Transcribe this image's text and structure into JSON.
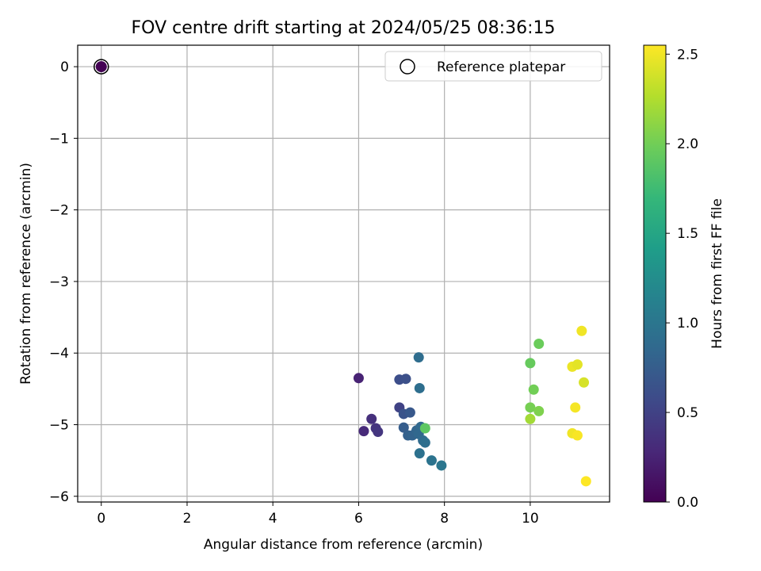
{
  "chart_data": {
    "type": "scatter",
    "title": "FOV centre drift starting at 2024/05/25 08:36:15",
    "xlabel": "Angular distance from reference (arcmin)",
    "ylabel": "Rotation from reference (arcmin)",
    "xlim": [
      -0.55,
      11.85
    ],
    "ylim": [
      -6.08,
      0.3
    ],
    "xticks": [
      0,
      2,
      4,
      6,
      8,
      10
    ],
    "yticks": [
      0,
      -1,
      -2,
      -3,
      -4,
      -5,
      -6
    ],
    "grid": true,
    "legend": {
      "location": "top-right",
      "entries": [
        "Reference platepar"
      ]
    },
    "colorbar": {
      "label": "Hours from first FF file",
      "range": [
        0.0,
        2.55
      ],
      "ticks": [
        "0.0",
        "0.5",
        "1.0",
        "1.5",
        "2.0",
        "2.5"
      ],
      "colormap": "viridis"
    },
    "reference_point": {
      "x": 0.0,
      "y": 0.0,
      "hours": 0.0
    },
    "points": [
      {
        "x": 6.0,
        "y": -4.35,
        "hours": 0.25
      },
      {
        "x": 6.12,
        "y": -5.09,
        "hours": 0.3
      },
      {
        "x": 6.3,
        "y": -4.92,
        "hours": 0.35
      },
      {
        "x": 6.4,
        "y": -5.05,
        "hours": 0.38
      },
      {
        "x": 6.45,
        "y": -5.1,
        "hours": 0.4
      },
      {
        "x": 6.95,
        "y": -4.76,
        "hours": 0.5
      },
      {
        "x": 6.95,
        "y": -4.37,
        "hours": 0.6
      },
      {
        "x": 7.1,
        "y": -4.36,
        "hours": 0.62
      },
      {
        "x": 7.05,
        "y": -4.85,
        "hours": 0.65
      },
      {
        "x": 7.2,
        "y": -4.83,
        "hours": 0.7
      },
      {
        "x": 7.05,
        "y": -5.04,
        "hours": 0.75
      },
      {
        "x": 7.15,
        "y": -5.15,
        "hours": 0.78
      },
      {
        "x": 7.25,
        "y": -5.15,
        "hours": 0.8
      },
      {
        "x": 7.35,
        "y": -5.08,
        "hours": 0.82
      },
      {
        "x": 7.4,
        "y": -5.13,
        "hours": 0.85
      },
      {
        "x": 7.45,
        "y": -5.03,
        "hours": 0.86
      },
      {
        "x": 7.5,
        "y": -5.22,
        "hours": 0.88
      },
      {
        "x": 7.4,
        "y": -4.06,
        "hours": 0.9
      },
      {
        "x": 7.42,
        "y": -4.49,
        "hours": 0.92
      },
      {
        "x": 7.55,
        "y": -5.25,
        "hours": 0.93
      },
      {
        "x": 7.42,
        "y": -5.4,
        "hours": 0.95
      },
      {
        "x": 7.7,
        "y": -5.5,
        "hours": 0.97
      },
      {
        "x": 7.93,
        "y": -5.57,
        "hours": 1.0
      },
      {
        "x": 7.55,
        "y": -5.05,
        "hours": 1.9
      },
      {
        "x": 10.0,
        "y": -4.14,
        "hours": 1.95
      },
      {
        "x": 10.2,
        "y": -3.87,
        "hours": 1.97
      },
      {
        "x": 10.08,
        "y": -4.51,
        "hours": 2.0
      },
      {
        "x": 10.0,
        "y": -4.76,
        "hours": 2.02
      },
      {
        "x": 10.2,
        "y": -4.81,
        "hours": 2.05
      },
      {
        "x": 10.0,
        "y": -4.92,
        "hours": 2.2
      },
      {
        "x": 11.2,
        "y": -3.69,
        "hours": 2.5
      },
      {
        "x": 10.98,
        "y": -4.19,
        "hours": 2.48
      },
      {
        "x": 11.1,
        "y": -4.16,
        "hours": 2.45
      },
      {
        "x": 11.25,
        "y": -4.41,
        "hours": 2.4
      },
      {
        "x": 11.05,
        "y": -4.76,
        "hours": 2.52
      },
      {
        "x": 10.98,
        "y": -5.12,
        "hours": 2.5
      },
      {
        "x": 11.1,
        "y": -5.15,
        "hours": 2.53
      },
      {
        "x": 11.3,
        "y": -5.79,
        "hours": 2.55
      }
    ]
  }
}
